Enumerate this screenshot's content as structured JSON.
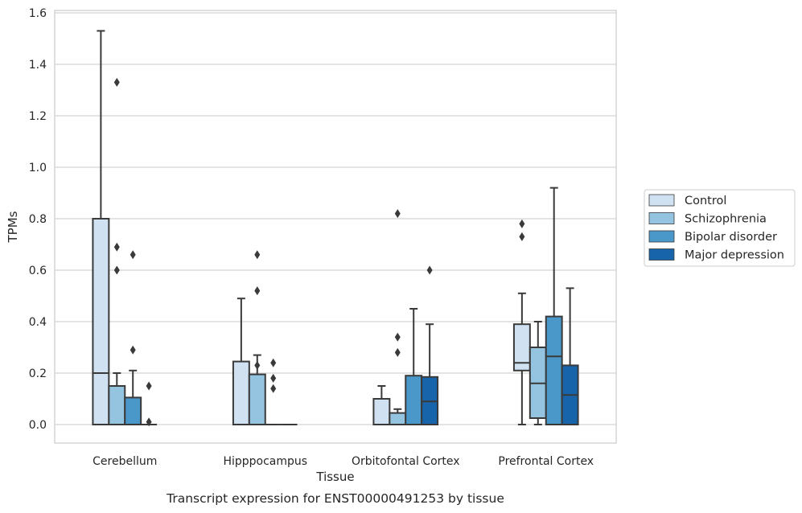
{
  "chart_data": {
    "type": "box",
    "title": "",
    "caption": "Transcript expression for ENST00000491253 by tissue",
    "xlabel": "Tissue",
    "ylabel": "TPMs",
    "ylim": [
      -0.07,
      1.61
    ],
    "yticks": [
      0.0,
      0.2,
      0.4,
      0.6,
      0.8,
      1.0,
      1.2,
      1.4,
      1.6
    ],
    "ytick_labels": [
      "0.0",
      "0.2",
      "0.4",
      "0.6",
      "0.8",
      "1.0",
      "1.2",
      "1.4",
      "1.6"
    ],
    "grid": "horizontal",
    "legend_position": "right",
    "categories": [
      "Cerebellum",
      "Hipppocampus",
      "Orbitofontal Cortex",
      "Prefrontal Cortex"
    ],
    "series": [
      {
        "name": "Control",
        "color": "#d0e1f2",
        "boxes": [
          {
            "min": 0.0,
            "q1": 0.0,
            "median": 0.2,
            "q3": 0.8,
            "max": 1.53,
            "outliers": []
          },
          {
            "min": 0.0,
            "q1": 0.0,
            "median": 0.0,
            "q3": 0.245,
            "max": 0.49,
            "outliers": []
          },
          {
            "min": 0.0,
            "q1": 0.0,
            "median": 0.0,
            "q3": 0.1,
            "max": 0.15,
            "outliers": []
          },
          {
            "min": 0.0,
            "q1": 0.21,
            "median": 0.24,
            "q3": 0.39,
            "max": 0.51,
            "outliers": [
              0.73,
              0.78
            ]
          }
        ]
      },
      {
        "name": "Schizophrenia",
        "color": "#94c4df",
        "boxes": [
          {
            "min": 0.0,
            "q1": 0.0,
            "median": 0.0,
            "q3": 0.15,
            "max": 0.2,
            "outliers": [
              0.6,
              0.69,
              1.33
            ]
          },
          {
            "min": 0.0,
            "q1": 0.0,
            "median": 0.0,
            "q3": 0.195,
            "max": 0.27,
            "outliers": [
              0.23,
              0.52,
              0.66
            ]
          },
          {
            "min": 0.0,
            "q1": 0.0,
            "median": 0.0,
            "q3": 0.045,
            "max": 0.06,
            "outliers": [
              0.28,
              0.34,
              0.82
            ]
          },
          {
            "min": 0.0,
            "q1": 0.025,
            "median": 0.16,
            "q3": 0.3,
            "max": 0.4,
            "outliers": []
          }
        ]
      },
      {
        "name": "Bipolar disorder",
        "color": "#4a98c9",
        "boxes": [
          {
            "min": 0.0,
            "q1": 0.0,
            "median": 0.0,
            "q3": 0.105,
            "max": 0.21,
            "outliers": [
              0.29,
              0.66
            ]
          },
          {
            "min": 0.0,
            "q1": 0.0,
            "median": 0.0,
            "q3": 0.0,
            "max": 0.0,
            "outliers": [
              0.14,
              0.18,
              0.24
            ]
          },
          {
            "min": 0.0,
            "q1": 0.0,
            "median": 0.0,
            "q3": 0.19,
            "max": 0.45,
            "outliers": []
          },
          {
            "min": 0.0,
            "q1": 0.0,
            "median": 0.265,
            "q3": 0.42,
            "max": 0.92,
            "outliers": []
          }
        ]
      },
      {
        "name": "Major depression",
        "color": "#1764ab",
        "boxes": [
          {
            "min": 0.0,
            "q1": 0.0,
            "median": 0.0,
            "q3": 0.0,
            "max": 0.0,
            "outliers": [
              0.01,
              0.15
            ]
          },
          {
            "min": 0.0,
            "q1": 0.0,
            "median": 0.0,
            "q3": 0.0,
            "max": 0.0,
            "outliers": []
          },
          {
            "min": 0.0,
            "q1": 0.0,
            "median": 0.09,
            "q3": 0.185,
            "max": 0.39,
            "outliers": [
              0.6
            ]
          },
          {
            "min": 0.0,
            "q1": 0.0,
            "median": 0.115,
            "q3": 0.23,
            "max": 0.53,
            "outliers": []
          }
        ]
      }
    ]
  }
}
